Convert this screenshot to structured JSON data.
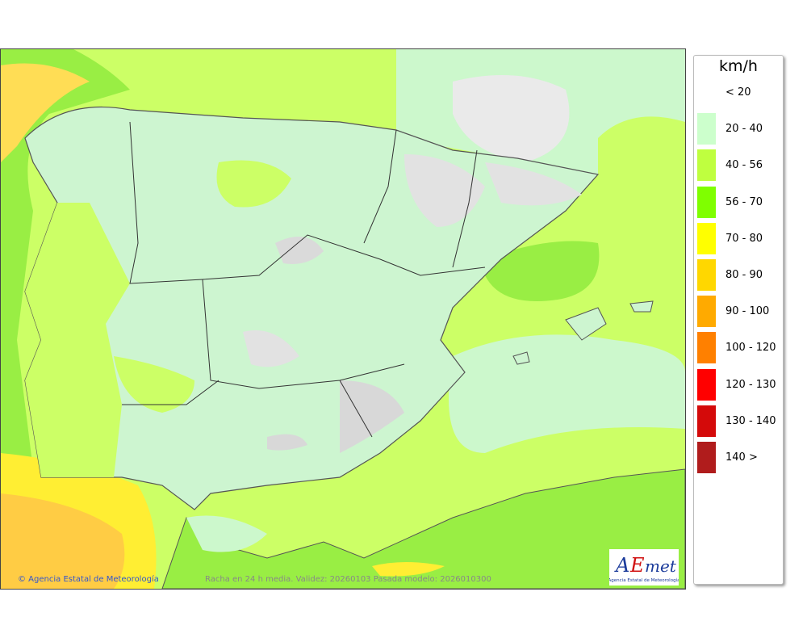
{
  "legend": {
    "unit": "km/h",
    "items": [
      {
        "label": "< 20",
        "color": null
      },
      {
        "label": "20 - 40",
        "color": "#ccffcc"
      },
      {
        "label": "40 - 56",
        "color": "#bfff3f"
      },
      {
        "label": "56 - 70",
        "color": "#7fff00"
      },
      {
        "label": "70 - 80",
        "color": "#ffff00"
      },
      {
        "label": "80 - 90",
        "color": "#ffd700"
      },
      {
        "label": "90 - 100",
        "color": "#ffaa00"
      },
      {
        "label": "100 - 120",
        "color": "#ff8000"
      },
      {
        "label": "120 - 130",
        "color": "#ff0000"
      },
      {
        "label": "130 - 140",
        "color": "#d40a0a"
      },
      {
        "label": "140 >",
        "color": "#b01c1c"
      }
    ]
  },
  "footer": {
    "copyright": "© Agencia Estatal de Meteorología",
    "caption": "Racha en 24 h media. Validez: 20260103 Pasada modelo: 2026010300"
  },
  "logo": {
    "text": "AEmet",
    "subtitle": "Agencia Estatal de Meteorología"
  }
}
